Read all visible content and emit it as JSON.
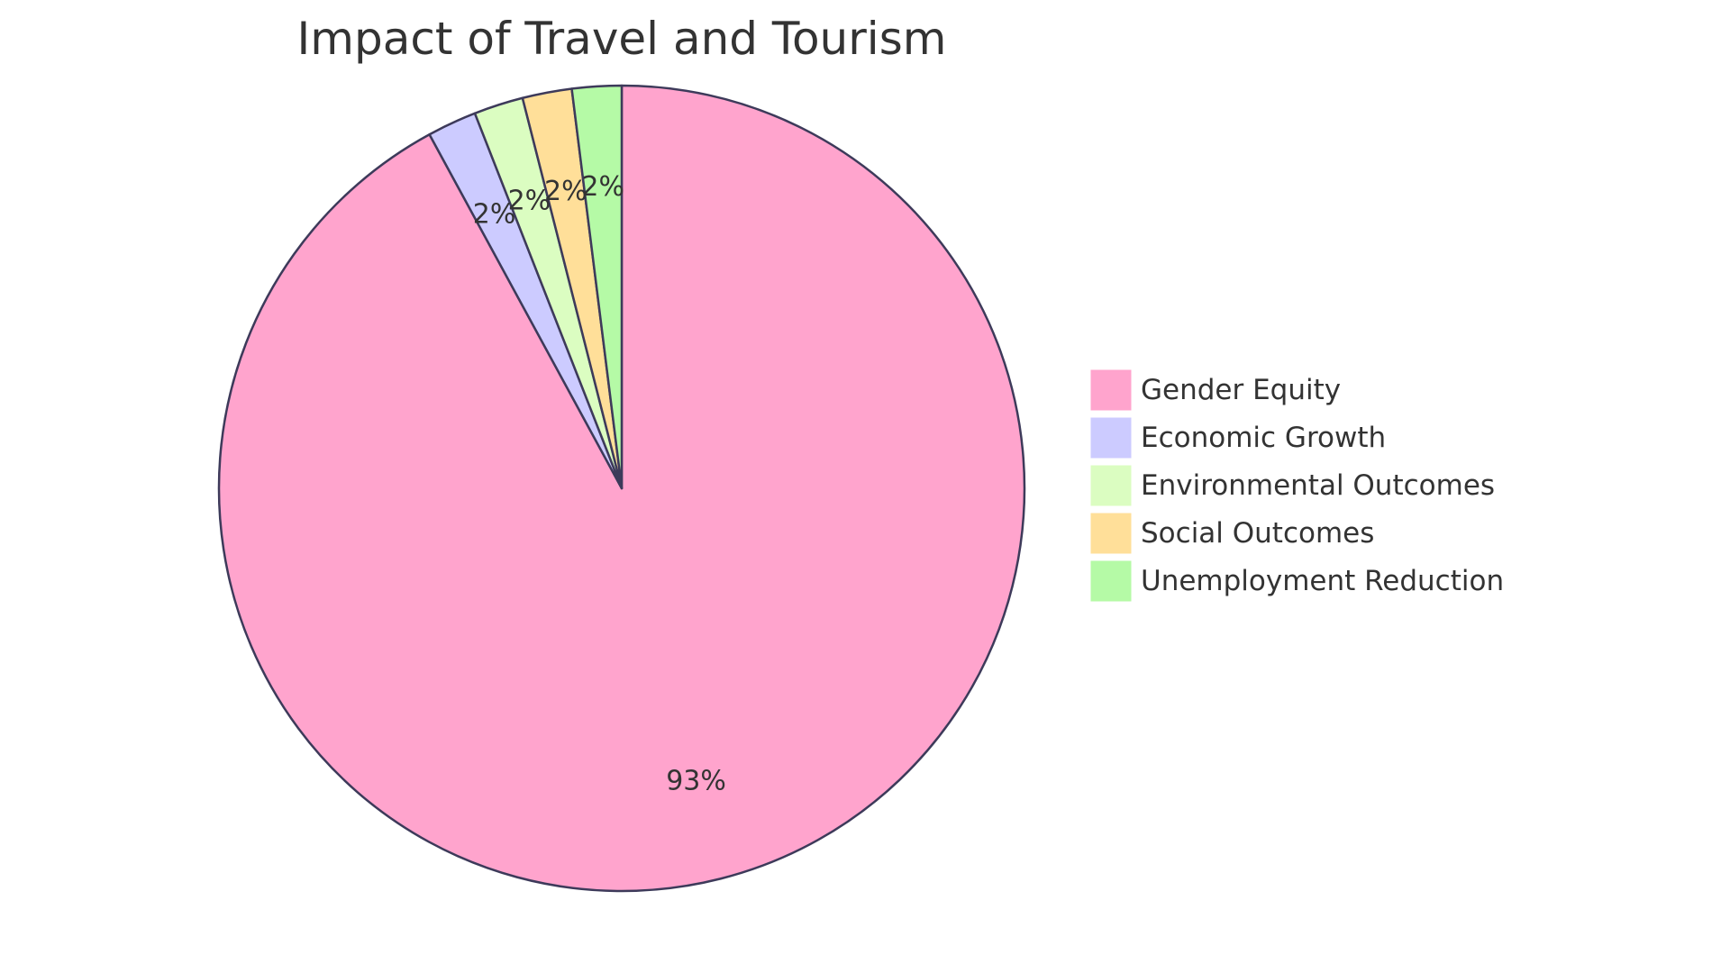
{
  "chart_data": {
    "type": "pie",
    "title": "Impact of Travel and Tourism",
    "slices": [
      {
        "name": "Gender Equity",
        "value": 93,
        "label": "93%",
        "color": "#ffa4cd"
      },
      {
        "name": "Economic Growth",
        "value": 2,
        "label": "2%",
        "color": "#cccbff"
      },
      {
        "name": "Environmental Outcomes",
        "value": 2,
        "label": "2%",
        "color": "#dbfdc1"
      },
      {
        "name": "Social Outcomes",
        "value": 2,
        "label": "2%",
        "color": "#ffdf99"
      },
      {
        "name": "Unemployment Reduction",
        "value": 2,
        "label": "2%",
        "color": "#b5faa6"
      }
    ],
    "legend_position": "right",
    "start_angle": "12 o'clock, counter-clockwise from last slice"
  }
}
